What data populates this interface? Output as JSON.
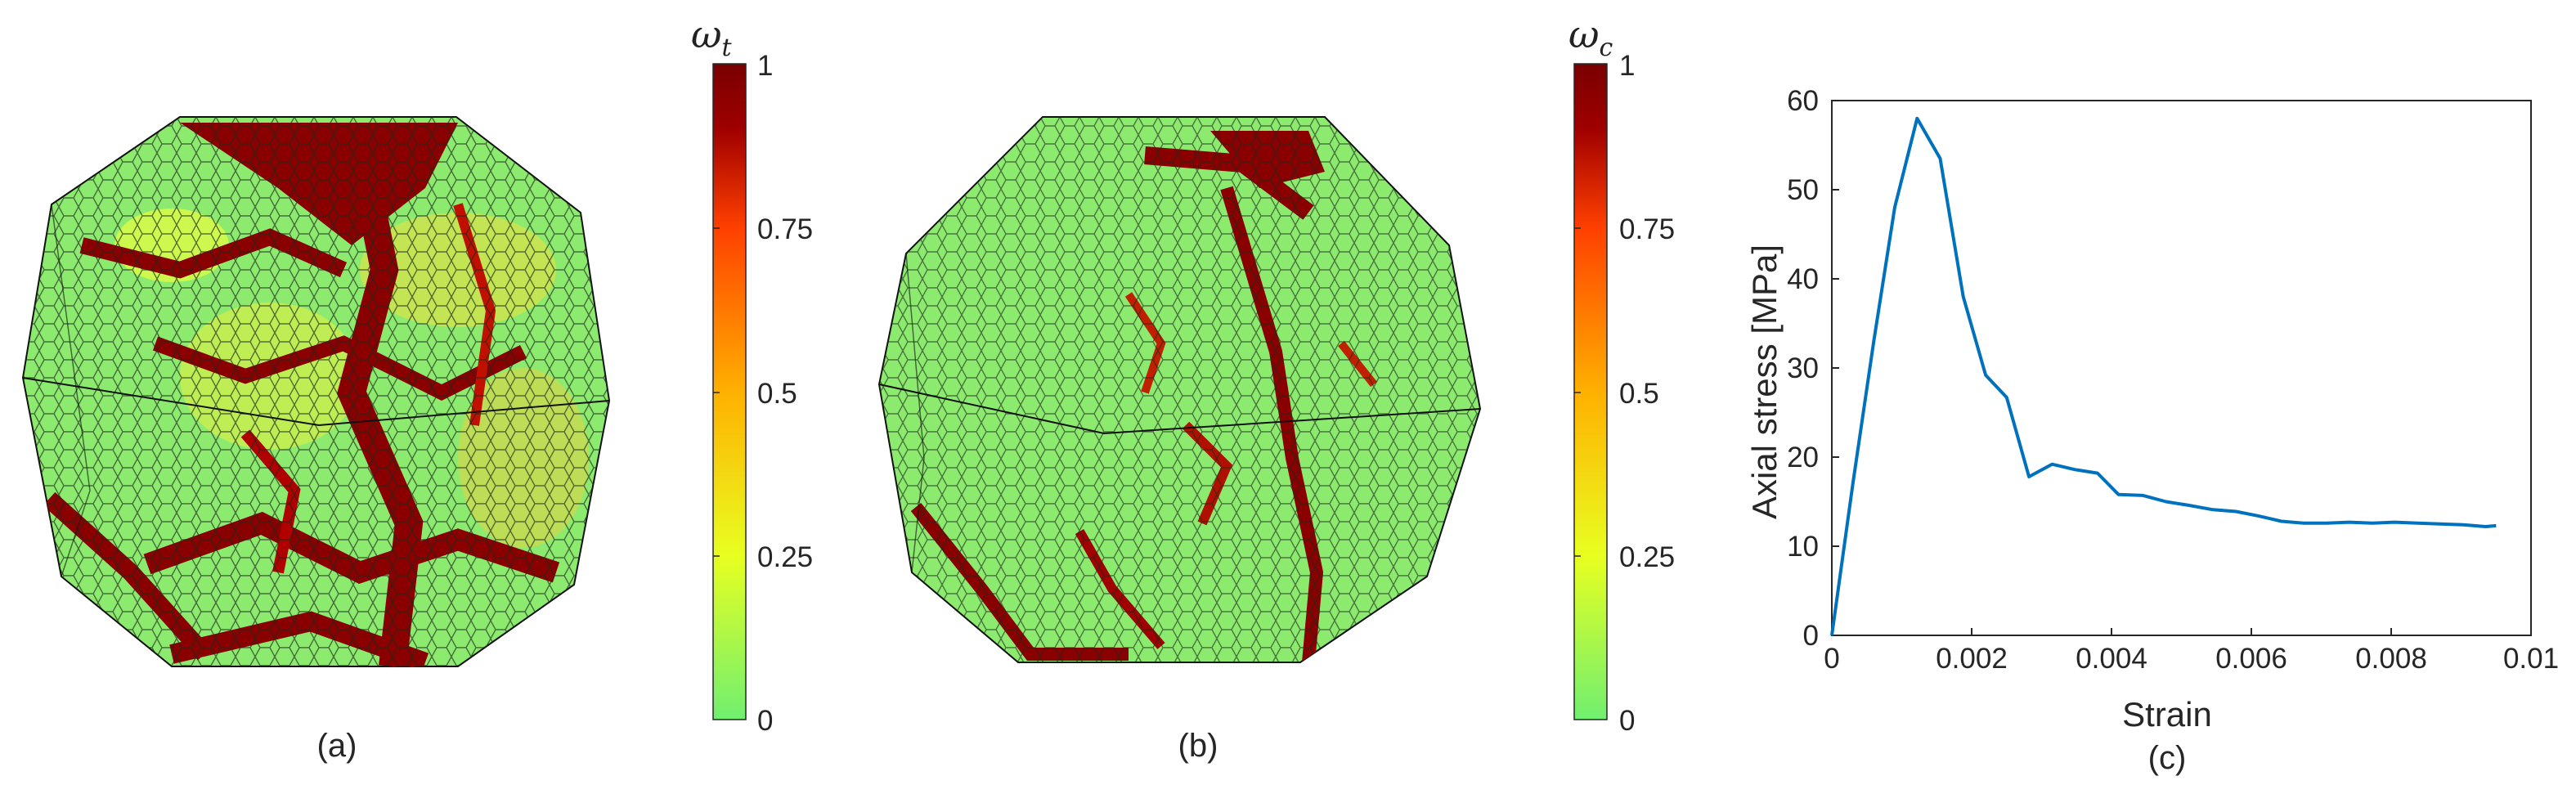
{
  "panels": [
    {
      "caption": "(a)",
      "colorbar": {
        "symbol": "ω",
        "subscript": "t",
        "ticks": [
          "1",
          "0.75",
          "0.5",
          "0.25",
          "0"
        ]
      }
    },
    {
      "caption": "(b)",
      "colorbar": {
        "symbol": "ω",
        "subscript": "c",
        "ticks": [
          "1",
          "0.75",
          "0.5",
          "0.25",
          "0"
        ]
      }
    }
  ],
  "colormap": [
    "#70ef70",
    "#e8ff20",
    "#ffb000",
    "#ff4000",
    "#a00000",
    "#7a0000"
  ],
  "chart_data": {
    "type": "line",
    "caption": "(c)",
    "xlabel": "Strain",
    "ylabel": "Axial stress [MPa]",
    "xlim": [
      0,
      0.01
    ],
    "ylim": [
      0,
      60
    ],
    "xticks": [
      0,
      0.002,
      0.004,
      0.006,
      0.008,
      0.01
    ],
    "xtick_labels": [
      "0",
      "0.002",
      "0.004",
      "0.006",
      "0.008",
      "0.01"
    ],
    "yticks": [
      0,
      10,
      20,
      30,
      40,
      50,
      60
    ],
    "ytick_labels": [
      "0",
      "10",
      "20",
      "30",
      "40",
      "50",
      "60"
    ],
    "grid": false,
    "line_color": "#0072bd",
    "series": [
      {
        "x": [
          0,
          0.0003,
          0.0006,
          0.0009,
          0.00122,
          0.00155,
          0.00188,
          0.0022,
          0.0025,
          0.00282,
          0.00315,
          0.00348,
          0.0038,
          0.0041,
          0.00445,
          0.00478,
          0.0051,
          0.00545,
          0.00578,
          0.0061,
          0.00643,
          0.00675,
          0.00708,
          0.0074,
          0.00773,
          0.00805,
          0.00838,
          0.0087,
          0.00903,
          0.00935,
          0.0095
        ],
        "y": [
          0,
          17,
          33,
          48,
          58,
          53.5,
          38,
          29.2,
          26.7,
          17.8,
          19.2,
          18.6,
          18.2,
          15.8,
          15.7,
          15.0,
          14.6,
          14.1,
          13.9,
          13.4,
          12.8,
          12.6,
          12.6,
          12.7,
          12.6,
          12.7,
          12.6,
          12.5,
          12.4,
          12.2,
          12.3
        ]
      }
    ]
  }
}
